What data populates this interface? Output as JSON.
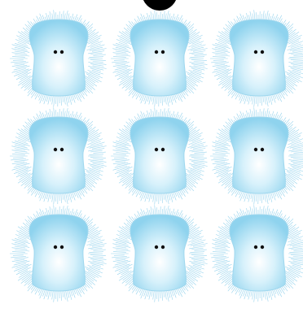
{
  "board": {
    "rows": 3,
    "cols": 3,
    "creature_count": 9,
    "creature_type": "fuzzy-blue-blob",
    "top_indicator": "black-circle"
  },
  "colors": {
    "background": "#ffffff",
    "body_light": "#ffffff",
    "body_mid": "#d7f1fb",
    "body_dark": "#8fd3ee",
    "outline": "#9fd7ee",
    "fur": "#7cc8e8",
    "eyes": "#111111",
    "indicator": "#000000"
  }
}
